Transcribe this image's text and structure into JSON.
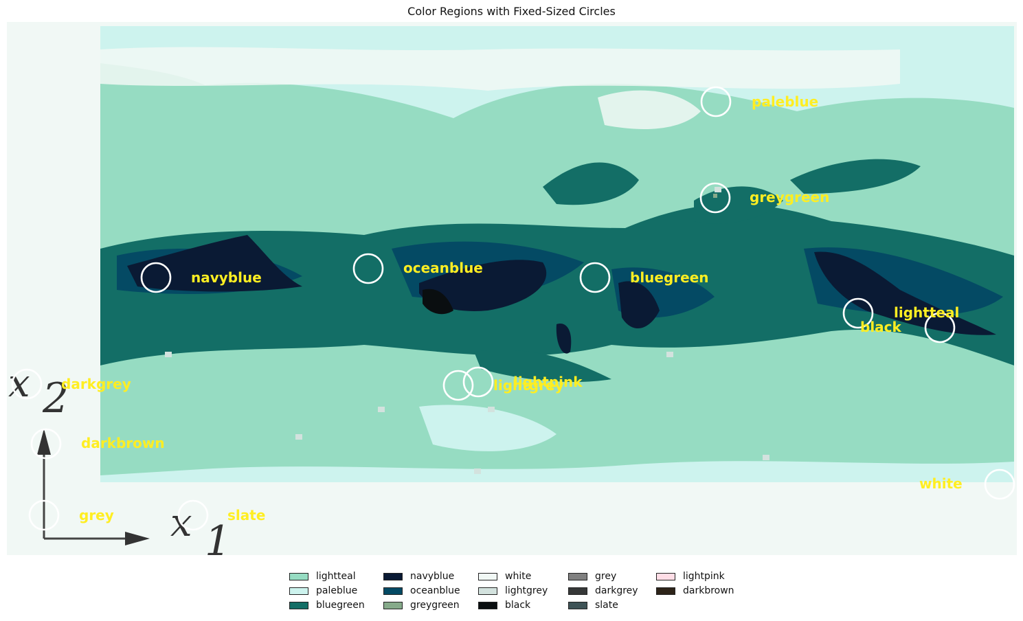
{
  "colors": {
    "lightteal": "#96dcc2",
    "paleblue": "#cdf3ee",
    "bluegreen": "#136e66",
    "navyblue": "#0a1a34",
    "oceanblue": "#044a64",
    "greygreen": "#86aa8a",
    "white": "#f1f8f5",
    "lightgrey": "#d3e2de",
    "black": "#0a0e10",
    "grey": "#808080",
    "darkgrey": "#363838",
    "slate": "#3e5356",
    "lightpink": "#ffdde6",
    "darkbrown": "#2d2419",
    "label": "#ffee22"
  },
  "chart_data": {
    "type": "image-annotation",
    "title": "Color Regions with Fixed-Sized Circles",
    "axis_glyphs": [
      "x",
      "2",
      "x",
      "1"
    ],
    "regions": [
      {
        "name": "paleblue",
        "label": "paleblue"
      },
      {
        "name": "greygreen",
        "label": "greygreen"
      },
      {
        "name": "navyblue",
        "label": "navyblue"
      },
      {
        "name": "oceanblue",
        "label": "oceanblue"
      },
      {
        "name": "bluegreen",
        "label": "bluegreen"
      },
      {
        "name": "black",
        "label": "black"
      },
      {
        "name": "lightteal",
        "label": "lightteal"
      },
      {
        "name": "darkgrey",
        "label": "darkgrey"
      },
      {
        "name": "lightgrey",
        "label": "lightgrey"
      },
      {
        "name": "lightpink",
        "label": "lightpink"
      },
      {
        "name": "darkbrown",
        "label": "darkbrown"
      },
      {
        "name": "white",
        "label": "white"
      },
      {
        "name": "grey",
        "label": "grey"
      },
      {
        "name": "slate",
        "label": "slate"
      }
    ],
    "legend": {
      "placement": "bottom-center",
      "columns": 5,
      "entries": [
        {
          "label": "lightteal",
          "key": "lightteal"
        },
        {
          "label": "paleblue",
          "key": "paleblue"
        },
        {
          "label": "bluegreen",
          "key": "bluegreen"
        },
        {
          "label": "navyblue",
          "key": "navyblue"
        },
        {
          "label": "oceanblue",
          "key": "oceanblue"
        },
        {
          "label": "greygreen",
          "key": "greygreen"
        },
        {
          "label": "white",
          "key": "white"
        },
        {
          "label": "lightgrey",
          "key": "lightgrey"
        },
        {
          "label": "black",
          "key": "black"
        },
        {
          "label": "grey",
          "key": "grey"
        },
        {
          "label": "darkgrey",
          "key": "darkgrey"
        },
        {
          "label": "slate",
          "key": "slate"
        },
        {
          "label": "lightpink",
          "key": "lightpink"
        },
        {
          "label": "darkbrown",
          "key": "darkbrown"
        }
      ]
    }
  }
}
